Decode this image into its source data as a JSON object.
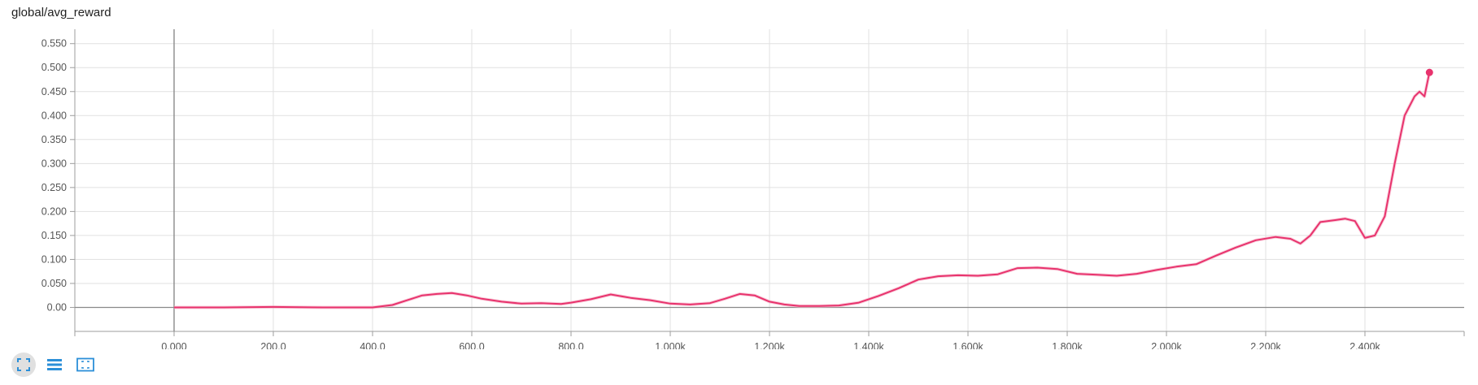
{
  "title": "global/avg_reward",
  "colors": {
    "series": "#e8336d",
    "series_smoothed_shadow": "#f6b8cc",
    "grid": "#e1e1e1",
    "axis": "#9e9e9e",
    "icon": "#2b8fd8"
  },
  "toolbar": {
    "buttons": [
      {
        "name": "expand-chart",
        "icon": "fullscreen-icon"
      },
      {
        "name": "toggle-log-scale",
        "icon": "list-icon"
      },
      {
        "name": "fit-domain",
        "icon": "fit-to-data-icon"
      }
    ]
  },
  "chart_data": {
    "type": "line",
    "title": "global/avg_reward",
    "xlim": [
      -200000,
      2600000
    ],
    "ylim": [
      -0.05,
      0.58
    ],
    "grid": true,
    "x_ticks": [
      {
        "value": 0,
        "label": "0.000"
      },
      {
        "value": 200000,
        "label": "200.0"
      },
      {
        "value": 400000,
        "label": "400.0"
      },
      {
        "value": 600000,
        "label": "600.0"
      },
      {
        "value": 800000,
        "label": "800.0"
      },
      {
        "value": 1000000,
        "label": "1.000k"
      },
      {
        "value": 1200000,
        "label": "1.200k"
      },
      {
        "value": 1400000,
        "label": "1.400k"
      },
      {
        "value": 1600000,
        "label": "1.600k"
      },
      {
        "value": 1800000,
        "label": "1.800k"
      },
      {
        "value": 2000000,
        "label": "2.000k"
      },
      {
        "value": 2200000,
        "label": "2.200k"
      },
      {
        "value": 2400000,
        "label": "2.400k"
      }
    ],
    "y_ticks": [
      {
        "value": 0.0,
        "label": "0.00"
      },
      {
        "value": 0.05,
        "label": "0.050"
      },
      {
        "value": 0.1,
        "label": "0.100"
      },
      {
        "value": 0.15,
        "label": "0.150"
      },
      {
        "value": 0.2,
        "label": "0.200"
      },
      {
        "value": 0.25,
        "label": "0.250"
      },
      {
        "value": 0.3,
        "label": "0.300"
      },
      {
        "value": 0.35,
        "label": "0.350"
      },
      {
        "value": 0.4,
        "label": "0.400"
      },
      {
        "value": 0.45,
        "label": "0.450"
      },
      {
        "value": 0.5,
        "label": "0.500"
      },
      {
        "value": 0.55,
        "label": "0.550"
      }
    ],
    "series": [
      {
        "x": [
          0,
          100000,
          200000,
          300000,
          400000,
          440000,
          470000,
          500000,
          530000,
          560000,
          590000,
          620000,
          660000,
          700000,
          740000,
          780000,
          800000,
          840000,
          880000,
          920000,
          960000,
          1000000,
          1040000,
          1080000,
          1110000,
          1140000,
          1170000,
          1200000,
          1230000,
          1260000,
          1300000,
          1340000,
          1380000,
          1420000,
          1460000,
          1500000,
          1540000,
          1580000,
          1620000,
          1660000,
          1700000,
          1740000,
          1780000,
          1820000,
          1860000,
          1900000,
          1940000,
          1980000,
          2020000,
          2060000,
          2100000,
          2140000,
          2180000,
          2220000,
          2250000,
          2270000,
          2290000,
          2310000,
          2340000,
          2360000,
          2380000,
          2400000,
          2420000,
          2440000,
          2460000,
          2480000,
          2500000,
          2510000,
          2520000,
          2530000
        ],
        "y": [
          0.0,
          0.0,
          0.001,
          0.0,
          0.0,
          0.005,
          0.015,
          0.025,
          0.028,
          0.03,
          0.025,
          0.018,
          0.012,
          0.008,
          0.009,
          0.007,
          0.01,
          0.017,
          0.027,
          0.02,
          0.015,
          0.008,
          0.006,
          0.009,
          0.018,
          0.028,
          0.025,
          0.012,
          0.006,
          0.003,
          0.003,
          0.004,
          0.01,
          0.024,
          0.04,
          0.058,
          0.065,
          0.067,
          0.066,
          0.069,
          0.082,
          0.083,
          0.08,
          0.07,
          0.068,
          0.066,
          0.07,
          0.078,
          0.085,
          0.09,
          0.108,
          0.125,
          0.14,
          0.147,
          0.143,
          0.133,
          0.15,
          0.178,
          0.182,
          0.185,
          0.18,
          0.145,
          0.15,
          0.19,
          0.3,
          0.4,
          0.44,
          0.45,
          0.44,
          0.49
        ]
      }
    ]
  }
}
